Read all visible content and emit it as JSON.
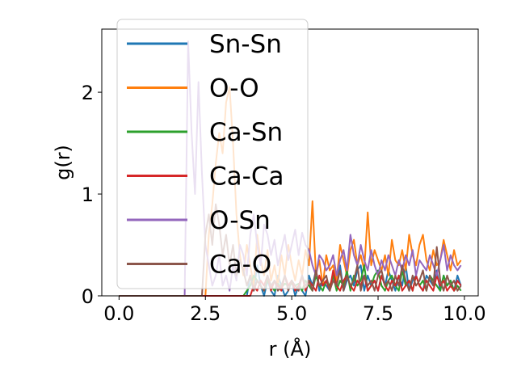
{
  "chart_data": {
    "type": "line",
    "title": "",
    "xlabel": "r (Å)",
    "ylabel": "g(r)",
    "xlim": [
      -0.5,
      10.4
    ],
    "ylim": [
      0,
      2.62
    ],
    "xticks": [
      0.0,
      2.5,
      5.0,
      7.5,
      10.0
    ],
    "xtick_labels": [
      "0.0",
      "2.5",
      "5.0",
      "7.5",
      "10.0"
    ],
    "yticks": [
      0,
      1,
      2
    ],
    "ytick_labels": [
      "0",
      "1",
      "2"
    ],
    "grid": false,
    "legend_position": "upper-left",
    "x": [
      0.0,
      0.5,
      1.0,
      1.5,
      1.9,
      2.0,
      2.1,
      2.2,
      2.3,
      2.4,
      2.5,
      2.6,
      2.7,
      2.8,
      2.9,
      3.0,
      3.1,
      3.2,
      3.3,
      3.4,
      3.5,
      3.6,
      3.7,
      3.8,
      3.9,
      4.0,
      4.1,
      4.2,
      4.3,
      4.4,
      4.5,
      4.6,
      4.7,
      4.8,
      4.9,
      5.0,
      5.1,
      5.2,
      5.3,
      5.4,
      5.5,
      5.6,
      5.7,
      5.8,
      5.9,
      6.0,
      6.1,
      6.2,
      6.3,
      6.4,
      6.5,
      6.6,
      6.7,
      6.8,
      6.9,
      7.0,
      7.1,
      7.2,
      7.3,
      7.4,
      7.5,
      7.6,
      7.7,
      7.8,
      7.9,
      8.0,
      8.1,
      8.2,
      8.3,
      8.4,
      8.5,
      8.6,
      8.7,
      8.8,
      8.9,
      9.0,
      9.1,
      9.2,
      9.3,
      9.4,
      9.5,
      9.6,
      9.7,
      9.8,
      9.9
    ],
    "series": [
      {
        "name": "Sn-Sn",
        "color": "#1f77b4",
        "values": [
          0,
          0,
          0,
          0,
          0,
          0,
          0,
          0,
          0,
          0,
          0,
          0,
          0,
          0,
          0,
          0,
          0,
          0,
          0,
          0,
          0,
          0,
          0,
          0.2,
          0.05,
          0.3,
          0.1,
          0,
          0.15,
          0.05,
          0,
          0.2,
          0.1,
          0,
          0.05,
          0.15,
          0,
          0.1,
          0.05,
          0,
          0.2,
          0.1,
          0.25,
          0.05,
          0.15,
          0.1,
          0.05,
          0.2,
          0.1,
          0.3,
          0.05,
          0.15,
          0.2,
          0.1,
          0.25,
          0.3,
          0.05,
          0.2,
          0.1,
          0.15,
          0.05,
          0.2,
          0.1,
          0.25,
          0.15,
          0.05,
          0.2,
          0.1,
          0.3,
          0.05,
          0.15,
          0.2,
          0.1,
          0.05,
          0.2,
          0.15,
          0.1,
          0.25,
          0.05,
          0.2,
          0.1,
          0.15,
          0.05,
          0.2,
          0.1
        ]
      },
      {
        "name": "O-O",
        "color": "#ff7f0e",
        "values": [
          0,
          0,
          0,
          0,
          0,
          0,
          0,
          0,
          0,
          0,
          0,
          0.6,
          0.9,
          1.3,
          1.6,
          1.4,
          1.9,
          2.05,
          1.5,
          0.8,
          0.4,
          0.2,
          0.5,
          0.3,
          0.1,
          0.6,
          0.35,
          0.2,
          0.45,
          0.15,
          0.3,
          0.1,
          0.4,
          0.2,
          0.5,
          0.3,
          0.15,
          0.35,
          0.2,
          0.45,
          0.3,
          0.93,
          0.2,
          0.35,
          0.1,
          0.4,
          0.25,
          0.3,
          0.15,
          0.5,
          0.35,
          0.2,
          0.45,
          0.55,
          0.3,
          0.4,
          0.25,
          0.82,
          0.3,
          0.45,
          0.35,
          0.25,
          0.4,
          0.2,
          0.55,
          0.35,
          0.3,
          0.45,
          0.25,
          0.6,
          0.4,
          0.3,
          0.5,
          0.6,
          0.35,
          0.25,
          0.45,
          0.3,
          0.35,
          0.55,
          0.4,
          0.25,
          0.45,
          0.3,
          0.35
        ]
      },
      {
        "name": "Ca-Sn",
        "color": "#2ca02c",
        "values": [
          0,
          0,
          0,
          0,
          0,
          0,
          0,
          0,
          0,
          0,
          0,
          0,
          0,
          0,
          0,
          0,
          0,
          0,
          0,
          0,
          0,
          0,
          0.05,
          0.1,
          0.2,
          0.15,
          0.1,
          0.05,
          0.15,
          0.1,
          0.05,
          0.12,
          0.08,
          0.12,
          0.1,
          0.12,
          0.1,
          0.12,
          0.05,
          0.15,
          0.1,
          0.05,
          0.2,
          0.1,
          0.05,
          0.15,
          0.1,
          0.2,
          0.05,
          0.15,
          0.1,
          0.25,
          0.05,
          0.2,
          0.1,
          0.15,
          0.3,
          0.05,
          0.1,
          0.2,
          0.25,
          0.1,
          0.05,
          0.15,
          0.2,
          0.1,
          0.05,
          0.25,
          0.1,
          0.15,
          0.05,
          0.2,
          0.1,
          0.15,
          0.05,
          0.2,
          0.15,
          0.1,
          0.05,
          0.2,
          0.1,
          0.15,
          0.05,
          0.1,
          0.05
        ]
      },
      {
        "name": "Ca-Ca",
        "color": "#d62728",
        "values": [
          0,
          0,
          0,
          0,
          0,
          0,
          0,
          0,
          0,
          0,
          0,
          0,
          0,
          0,
          0,
          0,
          0,
          0,
          0,
          0,
          0,
          0,
          0,
          0,
          0.1,
          0.05,
          0.15,
          0.1,
          0.2,
          0.05,
          0.15,
          0.1,
          0.05,
          0.2,
          0.1,
          0.15,
          0.05,
          0.1,
          0.2,
          0.05,
          0.15,
          0.1,
          0.05,
          0.2,
          0.1,
          0.15,
          0.05,
          0.25,
          0.1,
          0.05,
          0.15,
          0.2,
          0.1,
          0.05,
          0.15,
          0.1,
          0.2,
          0.05,
          0.1,
          0.15,
          0.05,
          0.2,
          0.1,
          0.05,
          0.15,
          0.1,
          0.2,
          0.05,
          0.1,
          0.15,
          0.05,
          0.2,
          0.1,
          0.05,
          0.15,
          0.1,
          0.05,
          0.2,
          0.1,
          0.15,
          0.05,
          0.1,
          0.05,
          0.15,
          0.1
        ]
      },
      {
        "name": "O-Sn",
        "color": "#9467bd",
        "values": [
          0,
          0,
          0,
          0,
          0,
          2.5,
          1.6,
          1.0,
          2.1,
          1.2,
          0.5,
          0.3,
          0.1,
          0.2,
          0.4,
          0.1,
          0.2,
          0.05,
          0.3,
          0.15,
          0.5,
          0.4,
          0.2,
          0.6,
          0.8,
          0.5,
          0.3,
          0.7,
          0.6,
          0.4,
          0.55,
          0.3,
          0.45,
          0.6,
          0.35,
          0.5,
          0.65,
          0.4,
          0.62,
          0.5,
          0.45,
          0.3,
          0.2,
          0.4,
          0.35,
          0.25,
          0.3,
          0.4,
          0.2,
          0.35,
          0.45,
          0.25,
          0.6,
          0.4,
          0.3,
          0.5,
          0.35,
          0.25,
          0.45,
          0.3,
          0.2,
          0.35,
          0.25,
          0.4,
          0.3,
          0.2,
          0.35,
          0.25,
          0.4,
          0.3,
          0.45,
          0.2,
          0.35,
          0.3,
          0.25,
          0.4,
          0.3,
          0.2,
          0.35,
          0.5,
          0.25,
          0.4,
          0.3,
          0.25,
          0.3
        ]
      },
      {
        "name": "Ca-O",
        "color": "#8c564b",
        "values": [
          0,
          0,
          0,
          0,
          0,
          0,
          0,
          0,
          0,
          0,
          0.6,
          0.8,
          0.5,
          0.9,
          0.7,
          0.4,
          0.6,
          0.3,
          0.5,
          0.2,
          0.35,
          0.25,
          0.1,
          0.2,
          0.05,
          0.15,
          0.1,
          0.05,
          0.2,
          0.1,
          0.15,
          0.05,
          0.1,
          0.2,
          0.05,
          0.15,
          0.1,
          0.05,
          0.2,
          0.1,
          0.15,
          0.05,
          0.25,
          0.1,
          0.15,
          0.2,
          0.05,
          0.15,
          0.1,
          0.25,
          0.05,
          0.2,
          0.1,
          0.15,
          0.3,
          0.05,
          0.2,
          0.1,
          0.15,
          0.05,
          0.2,
          0.25,
          0.1,
          0.15,
          0.05,
          0.2,
          0.1,
          0.3,
          0.15,
          0.05,
          0.2,
          0.1,
          0.15,
          0.25,
          0.05,
          0.2,
          0.1,
          0.48,
          0.15,
          0.05,
          0.2,
          0.1,
          0.15,
          0.05,
          0.1
        ]
      }
    ]
  }
}
